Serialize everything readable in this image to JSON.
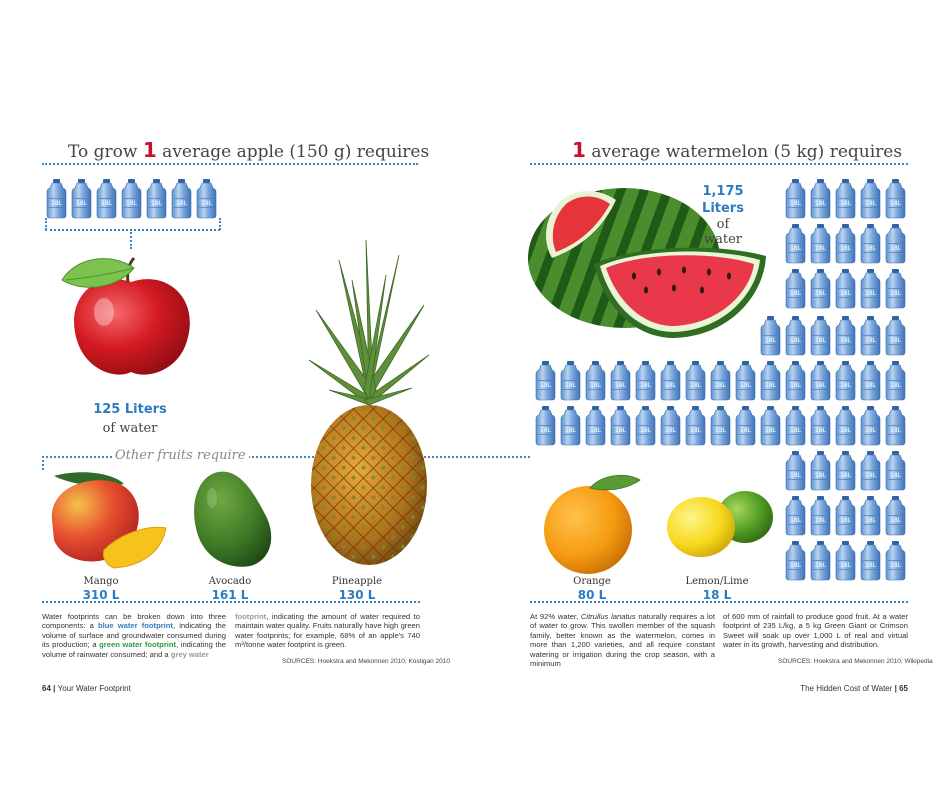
{
  "left": {
    "title_pre": "To grow ",
    "title_num": "1",
    "title_post": " average apple (150 g) requires",
    "bottle_label": "18L",
    "apple_liters": "125 Liters",
    "apple_ofwater": "of water",
    "other_fruits": "Other fruits require",
    "fruits": [
      {
        "name": "Mango",
        "value": "310 L"
      },
      {
        "name": "Avocado",
        "value": "161 L"
      },
      {
        "name": "Pineapple",
        "value": "130 L"
      }
    ],
    "text_col1": {
      "p1": "Water footprints can be broken down into three components: a ",
      "blue": "blue water footprint",
      "p2": ", indicating the volume of surface and groundwater consumed during its production; a ",
      "green": "green water footprint",
      "p3": ", indicating the volume of rainwater consumed; and a ",
      "grey": "grey water"
    },
    "text_col2": {
      "grey": "footprint",
      "p1": ", indicating the amount of water required to maintain water quality. Fruits naturally have high green water footprints; for example, 68% of an apple's 740 m³/tonne water footprint is green."
    },
    "sources": "SOURCES: Hoekstra and Mekonnen 2010; Kostigan 2010",
    "footer_num": "64",
    "footer_sep": " | ",
    "footer_text": "Your Water Footprint"
  },
  "right": {
    "title_num": "1",
    "title_post": " average watermelon (5 kg) requires",
    "wm_liters_num": "1,175",
    "wm_liters": "Liters",
    "wm_of": "of",
    "wm_water": "water",
    "fruits": [
      {
        "name": "Orange",
        "value": "80 L"
      },
      {
        "name": "Lemon/Lime",
        "value": "18 L"
      }
    ],
    "text_col1": {
      "p1": "At 92% water, ",
      "italic": "Citrullus lanatus",
      "p2": " naturally requires a lot of water to grow. This swollen member of the squash family, better known as the watermelon, comes in more than 1,200 varieties, and all require constant watering or irrigation during the crop season, with a minimum"
    },
    "text_col2": "of 600 mm of rainfall to produce good fruit. At a water footprint of 235 L/kg, a 5 kg Green Giant or Crimson Sweet will soak up over 1,000 L of real and virtual water in its growth, harvesting and distribution.",
    "sources": "SOURCES: Hoekstra and Mekonnen 2010; Wikipedia",
    "footer_text": "The Hidden Cost of Water",
    "footer_sep": " | ",
    "footer_num": "65"
  },
  "colors": {
    "accent_blue": "#2e7cc0",
    "accent_red": "#c8102e",
    "green": "#2f9a3d",
    "dotted_rule": "#3a86c8"
  }
}
